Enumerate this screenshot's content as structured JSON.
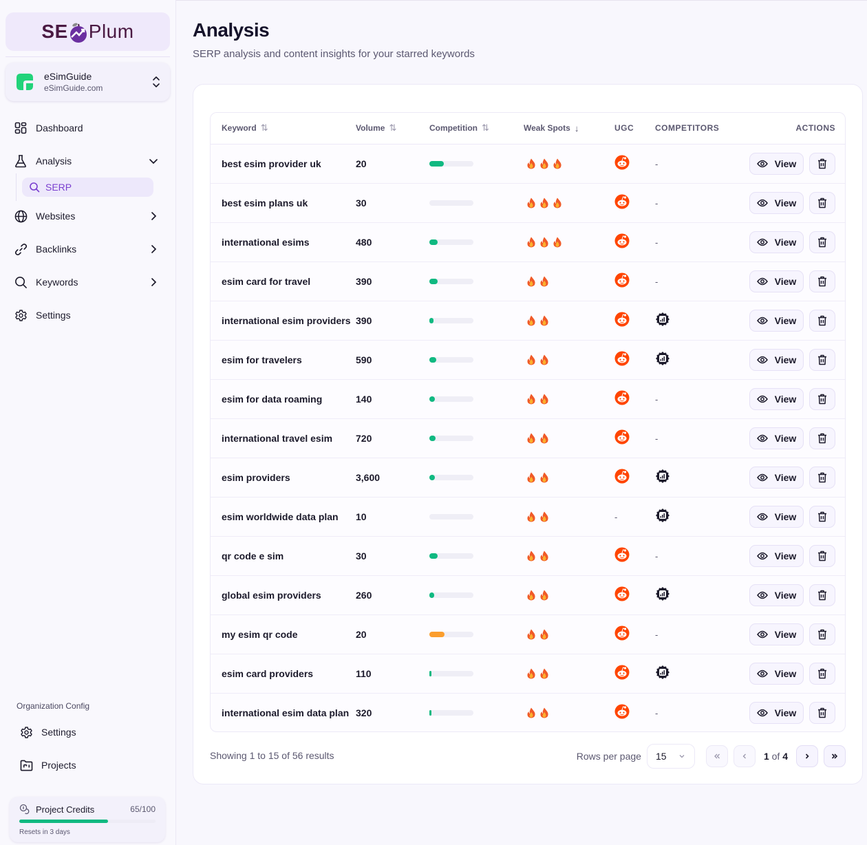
{
  "brand": {
    "logo_left": "SE",
    "logo_right": "Plum",
    "accent": "#7a3fcf",
    "logo_color": "#4a1942"
  },
  "org": {
    "name": "eSimGuide",
    "domain": "eSimGuide.com"
  },
  "sidebar": {
    "items": [
      {
        "label": "Dashboard",
        "icon": "dashboard-icon"
      },
      {
        "label": "Analysis",
        "icon": "flask-icon",
        "expanded": true
      },
      {
        "label": "Websites",
        "icon": "globe-icon"
      },
      {
        "label": "Backlinks",
        "icon": "link-icon"
      },
      {
        "label": "Keywords",
        "icon": "search-icon"
      },
      {
        "label": "Settings",
        "icon": "gear-icon"
      }
    ],
    "subitems": [
      {
        "label": "SERP",
        "icon": "search-icon",
        "active": true
      }
    ],
    "org_config_title": "Organization Config",
    "org_items": [
      {
        "label": "Settings",
        "icon": "gear-icon"
      },
      {
        "label": "Projects",
        "icon": "folder-icon"
      }
    ],
    "credits": {
      "title": "Project Credits",
      "count": "65/100",
      "used": 65,
      "total": 100,
      "reset": "Resets in 3 days",
      "bar_color": "#10b981"
    }
  },
  "page": {
    "title": "Analysis",
    "subtitle": "SERP analysis and content insights for your starred keywords"
  },
  "table": {
    "headers": {
      "keyword": "Keyword",
      "volume": "Volume",
      "competition": "Competition",
      "weak_spots": "Weak Spots",
      "ugc": "UGC",
      "competitors": "COMPETITORS",
      "actions": "ACTIONS"
    },
    "sort_icons": {
      "keyword": "⇅",
      "volume": "⇅",
      "competition": "⇅",
      "weak_spots": "↓"
    },
    "view_label": "View",
    "rows": [
      {
        "keyword": "best esim provider uk",
        "volume": "20",
        "competition": 33,
        "comp_color": "#10b981",
        "flames": 3,
        "ugc": true,
        "competitors": false
      },
      {
        "keyword": "best esim plans uk",
        "volume": "30",
        "competition": 0,
        "comp_color": "#10b981",
        "flames": 3,
        "ugc": true,
        "competitors": false
      },
      {
        "keyword": "international esims",
        "volume": "480",
        "competition": 18,
        "comp_color": "#10b981",
        "flames": 3,
        "ugc": true,
        "competitors": false
      },
      {
        "keyword": "esim card for travel",
        "volume": "390",
        "competition": 19,
        "comp_color": "#10b981",
        "flames": 2,
        "ugc": true,
        "competitors": false
      },
      {
        "keyword": "international esim providers",
        "volume": "390",
        "competition": 9,
        "comp_color": "#10b981",
        "flames": 2,
        "ugc": true,
        "competitors": true
      },
      {
        "keyword": "esim for travelers",
        "volume": "590",
        "competition": 16,
        "comp_color": "#10b981",
        "flames": 2,
        "ugc": true,
        "competitors": true
      },
      {
        "keyword": "esim for data roaming",
        "volume": "140",
        "competition": 12,
        "comp_color": "#10b981",
        "flames": 2,
        "ugc": true,
        "competitors": false
      },
      {
        "keyword": "international travel esim",
        "volume": "720",
        "competition": 14,
        "comp_color": "#10b981",
        "flames": 2,
        "ugc": true,
        "competitors": false
      },
      {
        "keyword": "esim providers",
        "volume": "3,600",
        "competition": 13,
        "comp_color": "#10b981",
        "flames": 2,
        "ugc": true,
        "competitors": true
      },
      {
        "keyword": "esim worldwide data plan",
        "volume": "10",
        "competition": 0,
        "comp_color": "#10b981",
        "flames": 2,
        "ugc": false,
        "competitors": true
      },
      {
        "keyword": "qr code e sim",
        "volume": "30",
        "competition": 19,
        "comp_color": "#10b981",
        "flames": 2,
        "ugc": true,
        "competitors": false
      },
      {
        "keyword": "global esim providers",
        "volume": "260",
        "competition": 11,
        "comp_color": "#10b981",
        "flames": 2,
        "ugc": true,
        "competitors": true
      },
      {
        "keyword": "my esim qr code",
        "volume": "20",
        "competition": 34,
        "comp_color": "#fb9e2d",
        "flames": 2,
        "ugc": true,
        "competitors": false
      },
      {
        "keyword": "esim card providers",
        "volume": "110",
        "competition": 4,
        "comp_color": "#10b981",
        "flames": 2,
        "ugc": true,
        "competitors": true
      },
      {
        "keyword": "international esim data plan",
        "volume": "320",
        "competition": 4,
        "comp_color": "#10b981",
        "flames": 2,
        "ugc": true,
        "competitors": false
      }
    ]
  },
  "footer": {
    "showing": "Showing 1 to 15 of 56 results",
    "rows_per_page_label": "Rows per page",
    "rows_per_page": "15",
    "page_current": "1",
    "page_of": "of",
    "page_total": "4"
  }
}
